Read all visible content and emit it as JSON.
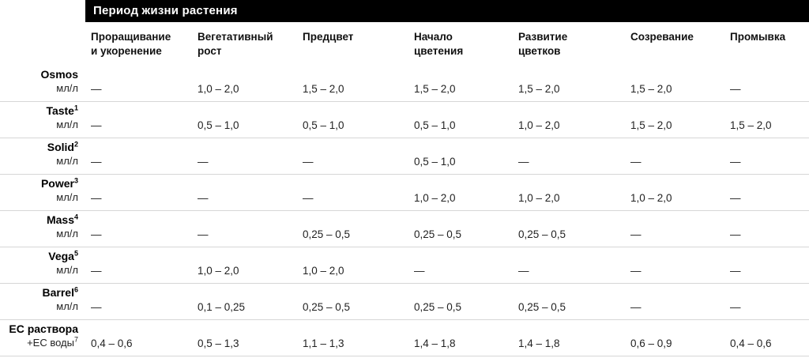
{
  "colors": {
    "title_bar_bg": "#000000",
    "title_text": "#ffffff",
    "divider": "#d6d6d6",
    "body_text": "#222222"
  },
  "chart_data": {
    "type": "table",
    "title": "Период жизни растения",
    "columns": [
      "Проращивание и укоренение",
      "Вегетативный рост",
      "Предцвет",
      "Начало цветения",
      "Развитие цветков",
      "Созревание",
      "Промывка"
    ],
    "rows": [
      {
        "name": "Osmos",
        "name_sup": "",
        "unit": "мл/л",
        "unit_sup": "",
        "values": [
          "—",
          "1,0 – 2,0",
          "1,5 – 2,0",
          "1,5 – 2,0",
          "1,5 – 2,0",
          "1,5 – 2,0",
          "—"
        ]
      },
      {
        "name": "Taste",
        "name_sup": "1",
        "unit": "мл/л",
        "unit_sup": "",
        "values": [
          "—",
          "0,5 – 1,0",
          "0,5 – 1,0",
          "0,5 – 1,0",
          "1,0 – 2,0",
          "1,5 – 2,0",
          "1,5 – 2,0"
        ]
      },
      {
        "name": "Solid",
        "name_sup": "2",
        "unit": "мл/л",
        "unit_sup": "",
        "values": [
          "—",
          "—",
          "—",
          "0,5 – 1,0",
          "—",
          "—",
          "—"
        ]
      },
      {
        "name": "Power",
        "name_sup": "3",
        "unit": "мл/л",
        "unit_sup": "",
        "values": [
          "—",
          "—",
          "—",
          "1,0 – 2,0",
          "1,0 – 2,0",
          "1,0 – 2,0",
          "—"
        ]
      },
      {
        "name": "Mass",
        "name_sup": "4",
        "unit": "мл/л",
        "unit_sup": "",
        "values": [
          "—",
          "—",
          "0,25 – 0,5",
          "0,25 – 0,5",
          "0,25 – 0,5",
          "—",
          "—"
        ]
      },
      {
        "name": "Vega",
        "name_sup": "5",
        "unit": "мл/л",
        "unit_sup": "",
        "values": [
          "—",
          "1,0 – 2,0",
          "1,0 – 2,0",
          "—",
          "—",
          "—",
          "—"
        ]
      },
      {
        "name": "Barrel",
        "name_sup": "6",
        "unit": "мл/л",
        "unit_sup": "",
        "values": [
          "—",
          "0,1 – 0,25",
          "0,25 – 0,5",
          "0,25 – 0,5",
          "0,25 – 0,5",
          "—",
          "—"
        ]
      },
      {
        "name": "EC раствора",
        "name_sup": "",
        "unit": "+EC воды",
        "unit_sup": "7",
        "values": [
          "0,4 – 0,6",
          "0,5 – 1,3",
          "1,1 – 1,3",
          "1,4 – 1,8",
          "1,4 – 1,8",
          "0,6 – 0,9",
          "0,4 – 0,6"
        ]
      }
    ]
  }
}
